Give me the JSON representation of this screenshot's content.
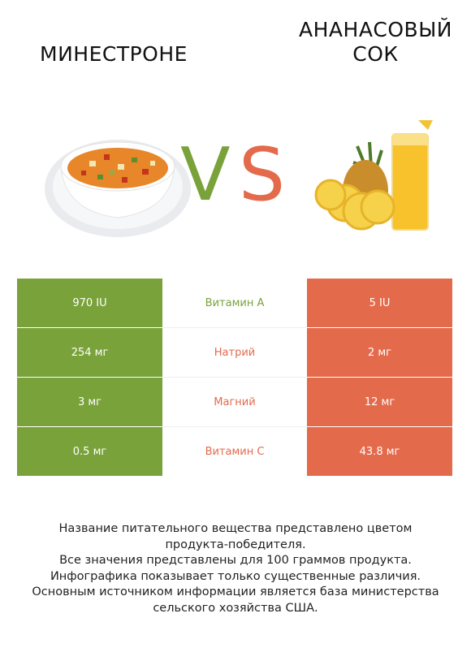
{
  "header": {
    "left_title": "МИНЕСТРОНЕ",
    "right_title_line1": "АНАНАСОВЫЙ",
    "right_title_line2": "СОК",
    "vs_v": "V",
    "vs_s": "S"
  },
  "colors": {
    "left_winner": "#7aa23a",
    "right_winner": "#e46a4c"
  },
  "images": {
    "left": "minestrone-soup-bowl",
    "right": "pineapple-juice-glass"
  },
  "rows": [
    {
      "left": "970 IU",
      "name": "Витамин A",
      "right": "5 IU",
      "winner": "left"
    },
    {
      "left": "254 мг",
      "name": "Натрий",
      "right": "2 мг",
      "winner": "right"
    },
    {
      "left": "3 мг",
      "name": "Магний",
      "right": "12 мг",
      "winner": "right"
    },
    {
      "left": "0.5 мг",
      "name": "Витамин C",
      "right": "43.8 мг",
      "winner": "right"
    }
  ],
  "footer": {
    "line1": "Название питательного вещества представлено цветом",
    "line2": "продукта-победителя.",
    "line3": "Все значения представлены для 100 граммов продукта.",
    "line4": "Инфографика показывает только существенные различия.",
    "line5": "Основным источником информации является база министерства",
    "line6": "сельского хозяйства США."
  }
}
